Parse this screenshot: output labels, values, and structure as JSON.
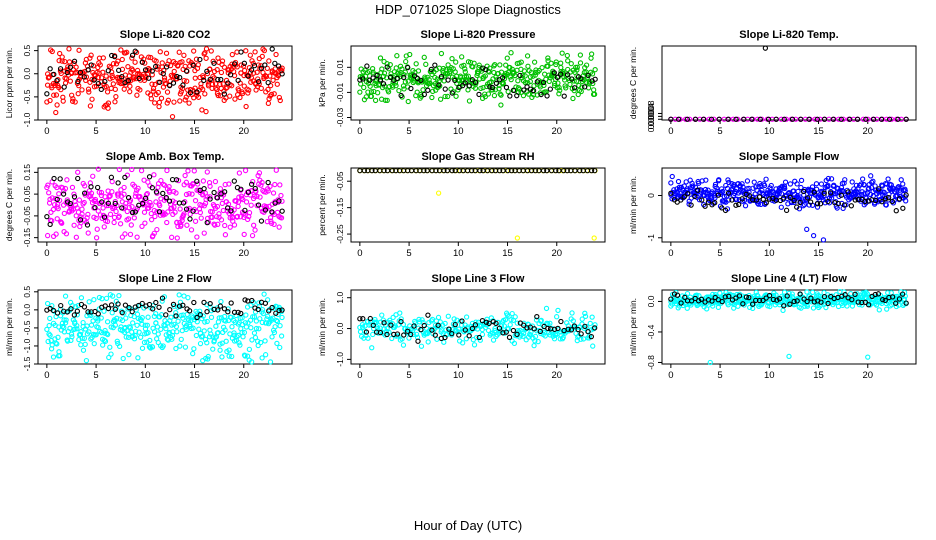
{
  "title": "HDP_071025  Slope Diagnostics",
  "xlabel": "Hour of Day (UTC)",
  "chart_data": [
    {
      "type": "scatter",
      "title": "Slope Li-820 CO2",
      "ylabel": "Licor ppm per min.",
      "xlim": [
        0,
        24
      ],
      "ylim": [
        -1.0,
        0.6
      ],
      "xticks": [
        "0",
        "5",
        "10",
        "15",
        "20"
      ],
      "yticks": [
        "-1.0",
        "-0.5",
        "0.0",
        "0.5"
      ],
      "yvals": [
        -1.0,
        -0.5,
        0.0,
        0.5
      ],
      "series": [
        {
          "color": "#ff0000",
          "n": 420,
          "center": -0.1,
          "spread": 0.32,
          "min": -0.95,
          "max": 0.55,
          "seed": 11
        },
        {
          "color": "#000000",
          "n": 70,
          "center": 0.0,
          "spread": 0.22,
          "min": -0.5,
          "max": 0.55,
          "seed": 12
        }
      ]
    },
    {
      "type": "scatter",
      "title": "Slope Li-820 Pressure",
      "ylabel": "kPa per min.",
      "xlim": [
        0,
        24
      ],
      "ylim": [
        -0.032,
        0.027
      ],
      "xticks": [
        "0",
        "5",
        "10",
        "15",
        "20"
      ],
      "yticks": [
        "-0.03",
        "-0.01",
        "0.01"
      ],
      "yvals": [
        -0.03,
        -0.01,
        0.01
      ],
      "series": [
        {
          "color": "#00c000",
          "n": 420,
          "center": 0.001,
          "spread": 0.008,
          "min": -0.031,
          "max": 0.025,
          "seed": 21
        },
        {
          "color": "#000000",
          "n": 70,
          "center": -0.002,
          "spread": 0.007,
          "min": -0.013,
          "max": 0.012,
          "seed": 22
        }
      ]
    },
    {
      "type": "scatter",
      "title": "Slope Li-820 Temp.",
      "ylabel": "degrees C per min.",
      "xlim": [
        0,
        24
      ],
      "ylim": [
        -0.0001,
        0.0101
      ],
      "xticks": [
        "0",
        "5",
        "10",
        "15",
        "20"
      ],
      "yticks": [
        "0.0000",
        "0.0004",
        "0.0008"
      ],
      "yvals": [
        0.0,
        0.0004,
        0.0008
      ],
      "series": [
        {
          "color": "#ff00ff",
          "n": 50,
          "center": 0.0,
          "spread": 0.0,
          "min": 0.0,
          "max": 0.0,
          "seed": 31
        },
        {
          "color": "#000000",
          "n": 30,
          "center": 0.0,
          "spread": 0.0,
          "min": 0.0,
          "max": 0.0,
          "seed": 32
        }
      ],
      "outliers": [
        {
          "x": 9.6,
          "y": 0.0098,
          "color": "#000000"
        }
      ]
    },
    {
      "type": "scatter",
      "title": "Slope Amb. Box Temp.",
      "ylabel": "degrees C per min.",
      "xlim": [
        0,
        24
      ],
      "ylim": [
        -0.17,
        0.17
      ],
      "xticks": [
        "0",
        "5",
        "10",
        "15",
        "20"
      ],
      "yticks": [
        "-0.15",
        "-0.05",
        "0.05",
        "0.15"
      ],
      "yvals": [
        -0.15,
        -0.05,
        0.05,
        0.15
      ],
      "series": [
        {
          "color": "#ff00ff",
          "n": 420,
          "center": 0.0,
          "spread": 0.07,
          "min": -0.165,
          "max": 0.165,
          "seed": 41
        },
        {
          "color": "#000000",
          "n": 70,
          "center": 0.02,
          "spread": 0.06,
          "min": -0.15,
          "max": 0.13,
          "seed": 42
        }
      ]
    },
    {
      "type": "scatter",
      "title": "Slope Gas Stream RH",
      "ylabel": "percent per min.",
      "xlim": [
        0,
        24
      ],
      "ylim": [
        -0.28,
        0.0
      ],
      "xticks": [
        "0",
        "5",
        "10",
        "15",
        "20"
      ],
      "yticks": [
        "-0.25",
        "-0.15",
        "-0.05"
      ],
      "yvals": [
        -0.25,
        -0.15,
        -0.05
      ],
      "series": [
        {
          "color": "#ffff00",
          "n": 60,
          "center": -0.01,
          "spread": 0.0,
          "min": -0.01,
          "max": -0.01,
          "seed": 51
        },
        {
          "color": "#000000",
          "n": 60,
          "center": -0.01,
          "spread": 0.0,
          "min": -0.01,
          "max": -0.01,
          "seed": 52
        }
      ],
      "outliers": [
        {
          "x": 8.0,
          "y": -0.095,
          "color": "#ffff00"
        },
        {
          "x": 16.0,
          "y": -0.265,
          "color": "#ffff00"
        },
        {
          "x": 23.8,
          "y": -0.265,
          "color": "#ffff00"
        }
      ]
    },
    {
      "type": "scatter",
      "title": "Slope Sample Flow",
      "ylabel": "ml/min per min.",
      "xlim": [
        0,
        24
      ],
      "ylim": [
        -1.1,
        0.65
      ],
      "xticks": [
        "0",
        "5",
        "10",
        "15",
        "20"
      ],
      "yticks": [
        "-1",
        "0"
      ],
      "yvals": [
        -1.0,
        0.0
      ],
      "series": [
        {
          "color": "#0000ff",
          "n": 420,
          "center": 0.05,
          "spread": 0.15,
          "min": -1.05,
          "max": 0.6,
          "seed": 61
        },
        {
          "color": "#000000",
          "n": 70,
          "center": -0.1,
          "spread": 0.12,
          "min": -0.4,
          "max": 0.3,
          "seed": 62
        }
      ],
      "outliers": [
        {
          "x": 14.5,
          "y": -0.95,
          "color": "#0000ff"
        },
        {
          "x": 15.5,
          "y": -1.05,
          "color": "#0000ff"
        },
        {
          "x": 13.8,
          "y": -0.8,
          "color": "#0000ff"
        }
      ]
    },
    {
      "type": "scatter",
      "title": "Slope Line 2 Flow",
      "ylabel": "ml/min per min.",
      "xlim": [
        0,
        24
      ],
      "ylim": [
        -1.5,
        0.55
      ],
      "xticks": [
        "0",
        "5",
        "10",
        "15",
        "20"
      ],
      "yticks": [
        "-1.5",
        "-1.0",
        "-0.5",
        "0.0",
        "0.5"
      ],
      "yvals": [
        -1.5,
        -1.0,
        -0.5,
        0.0,
        0.5
      ],
      "series": [
        {
          "color": "#00ffff",
          "n": 420,
          "center": -0.5,
          "spread": 0.4,
          "min": -1.45,
          "max": 0.45,
          "seed": 71
        },
        {
          "color": "#000000",
          "n": 70,
          "center": 0.05,
          "spread": 0.12,
          "min": -0.3,
          "max": 0.35,
          "seed": 72
        }
      ]
    },
    {
      "type": "scatter",
      "title": "Slope Line 3 Flow",
      "ylabel": "ml/min per min.",
      "xlim": [
        0,
        24
      ],
      "ylim": [
        -1.15,
        1.25
      ],
      "xticks": [
        "0",
        "5",
        "10",
        "15",
        "20"
      ],
      "yticks": [
        "-1.0",
        "0.0",
        "1.0"
      ],
      "yvals": [
        -1.0,
        0.0,
        1.0
      ],
      "series": [
        {
          "color": "#00ffff",
          "n": 300,
          "center": 0.0,
          "spread": 0.25,
          "min": -1.0,
          "max": 1.2,
          "seed": 81
        },
        {
          "color": "#000000",
          "n": 70,
          "center": 0.0,
          "spread": 0.18,
          "min": -0.6,
          "max": 0.5,
          "seed": 82
        }
      ]
    },
    {
      "type": "scatter",
      "title": "Slope Line 4 (LT) Flow",
      "ylabel": "ml/min per min.",
      "xlim": [
        0,
        24
      ],
      "ylim": [
        -0.82,
        0.15
      ],
      "xticks": [
        "0",
        "5",
        "10",
        "15",
        "20"
      ],
      "yticks": [
        "-0.8",
        "-0.4",
        "0.0"
      ],
      "yvals": [
        -0.8,
        -0.4,
        0.0
      ],
      "series": [
        {
          "color": "#00ffff",
          "n": 420,
          "center": 0.02,
          "spread": 0.05,
          "min": -0.12,
          "max": 0.13,
          "seed": 91
        },
        {
          "color": "#000000",
          "n": 70,
          "center": 0.03,
          "spread": 0.04,
          "min": -0.08,
          "max": 0.12,
          "seed": 92
        }
      ],
      "outliers": [
        {
          "x": 4.0,
          "y": -0.8,
          "color": "#00ffff"
        },
        {
          "x": 12.0,
          "y": -0.72,
          "color": "#00ffff"
        },
        {
          "x": 20.0,
          "y": -0.73,
          "color": "#00ffff"
        }
      ]
    }
  ]
}
